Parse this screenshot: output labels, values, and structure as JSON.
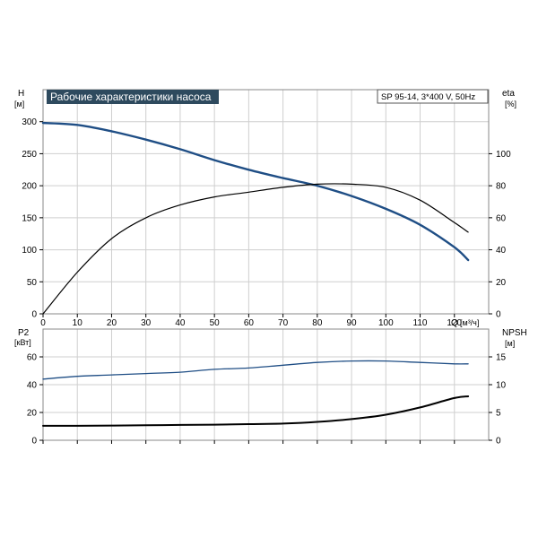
{
  "title": "Рабочие характеристики насоса",
  "model_label": "SP 95-14, 3*400 V, 50Hz",
  "colors": {
    "blue": "#1f4e85",
    "black": "#000000",
    "title_bg": "#2e4a5e",
    "grid": "#cfcfcf"
  },
  "chart_data": [
    {
      "type": "line",
      "panel": "top",
      "x_axis": {
        "name": "Q",
        "unit": "[м³/ч]",
        "range": [
          0,
          130
        ],
        "ticks": [
          0,
          10,
          20,
          30,
          40,
          50,
          60,
          70,
          80,
          90,
          100,
          110,
          120
        ]
      },
      "y_left": {
        "name": "H",
        "unit": "[м]",
        "range": [
          0,
          350
        ],
        "ticks": [
          0,
          50,
          100,
          150,
          200,
          250,
          300
        ]
      },
      "y_right": {
        "name": "eta",
        "unit": "[%]",
        "range": [
          0,
          140
        ],
        "ticks": [
          0,
          20,
          40,
          60,
          80,
          100
        ]
      },
      "grid": true,
      "series": [
        {
          "axis": "left",
          "color": "#1f4e85",
          "x": [
            0,
            10,
            20,
            30,
            40,
            50,
            60,
            70,
            80,
            90,
            100,
            110,
            120,
            124
          ],
          "y": [
            298,
            295,
            285,
            272,
            257,
            240,
            225,
            212,
            200,
            184,
            164,
            139,
            104,
            84
          ]
        },
        {
          "axis": "right",
          "color": "#000000",
          "x": [
            0,
            10,
            20,
            30,
            40,
            50,
            60,
            70,
            80,
            90,
            100,
            110,
            120,
            124
          ],
          "y": [
            0,
            26,
            47,
            60,
            68,
            73,
            76,
            79,
            81,
            81,
            79,
            71,
            57,
            51
          ]
        }
      ]
    },
    {
      "type": "line",
      "panel": "bottom",
      "x_axis": {
        "range": [
          0,
          130
        ]
      },
      "y_left": {
        "name": "P2",
        "unit": "[кВт]",
        "range": [
          0,
          80
        ],
        "ticks": [
          0,
          20,
          40,
          60
        ]
      },
      "y_right": {
        "name": "NPSH",
        "unit": "[м]",
        "range": [
          0,
          20
        ],
        "ticks": [
          0,
          5,
          10,
          15
        ]
      },
      "grid": true,
      "series": [
        {
          "axis": "left",
          "color": "#1f4e85",
          "x": [
            0,
            10,
            20,
            30,
            40,
            50,
            60,
            70,
            80,
            90,
            100,
            110,
            120,
            124
          ],
          "y": [
            44,
            46,
            47,
            48,
            49,
            51,
            52,
            54,
            56,
            57,
            57,
            56,
            55,
            55
          ]
        },
        {
          "axis": "right",
          "color": "#000000",
          "x": [
            0,
            10,
            20,
            30,
            40,
            50,
            60,
            70,
            80,
            90,
            100,
            110,
            120,
            124
          ],
          "y": [
            2.6,
            2.6,
            2.65,
            2.7,
            2.75,
            2.8,
            2.9,
            3.0,
            3.3,
            3.8,
            4.6,
            5.9,
            7.6,
            7.9
          ]
        }
      ]
    }
  ]
}
